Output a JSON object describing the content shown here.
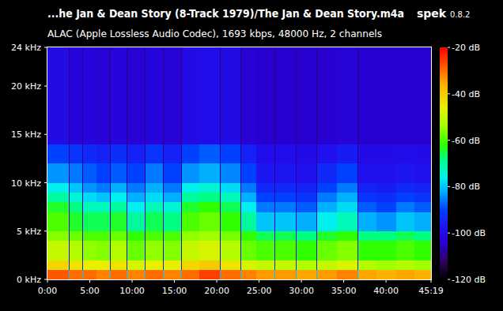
{
  "chart_data": {
    "type": "heatmap",
    "title": "...he Jan & Dean Story (8-Track 1979)/The Jan & Dean Story.m4a",
    "subtitle": "ALAC (Apple Lossless Audio Codec), 1693 kbps, 48000 Hz, 2 channels",
    "annotations": [
      "spek",
      "0.8.2"
    ],
    "x": [
      0,
      152,
      156,
      248,
      252,
      345,
      349,
      445,
      449,
      560,
      564,
      690,
      694,
      818,
      822,
      950,
      954,
      1075,
      1079,
      1224,
      1228,
      1367,
      1371,
      1478,
      1482,
      1610,
      1614,
      1760,
      1764,
      1905,
      1909,
      2050,
      2054,
      2200,
      2204,
      2330,
      2334,
      2470,
      2474,
      2600,
      2604,
      2719
    ],
    "y": [
      0,
      1,
      2,
      4,
      5,
      7,
      8,
      9,
      10,
      12,
      14,
      24
    ],
    "values": [
      [
        -28,
        -42,
        -50,
        -56,
        -60,
        -64,
        -70,
        -76,
        -84,
        -90,
        -100
      ],
      [
        -80,
        -95,
        -100,
        -102,
        -104,
        -105,
        -106,
        -107,
        -108,
        -108,
        -110
      ],
      [
        -30,
        -44,
        -52,
        -58,
        -64,
        -68,
        -74,
        -80,
        -86,
        -92,
        -102
      ],
      [
        -80,
        -95,
        -100,
        -102,
        -104,
        -105,
        -106,
        -107,
        -108,
        -108,
        -110
      ],
      [
        -30,
        -46,
        -55,
        -60,
        -66,
        -72,
        -78,
        -84,
        -88,
        -94,
        -102
      ],
      [
        -80,
        -95,
        -100,
        -102,
        -104,
        -105,
        -106,
        -107,
        -108,
        -108,
        -110
      ],
      [
        -32,
        -46,
        -56,
        -60,
        -66,
        -72,
        -80,
        -86,
        -90,
        -95,
        -103
      ],
      [
        -80,
        -95,
        -100,
        -102,
        -104,
        -105,
        -106,
        -107,
        -108,
        -108,
        -110
      ],
      [
        -30,
        -44,
        -52,
        -58,
        -64,
        -70,
        -76,
        -82,
        -88,
        -93,
        -102
      ],
      [
        -80,
        -95,
        -100,
        -102,
        -104,
        -105,
        -106,
        -107,
        -108,
        -108,
        -110
      ],
      [
        -32,
        -48,
        -58,
        -62,
        -70,
        -76,
        -82,
        -86,
        -90,
        -95,
        -103
      ],
      [
        -80,
        -95,
        -100,
        -102,
        -104,
        -105,
        -106,
        -107,
        -108,
        -108,
        -110
      ],
      [
        -30,
        -46,
        -55,
        -60,
        -66,
        -72,
        -78,
        -82,
        -86,
        -92,
        -102
      ],
      [
        -80,
        -95,
        -100,
        -102,
        -104,
        -105,
        -106,
        -107,
        -108,
        -108,
        -110
      ],
      [
        -32,
        -46,
        -56,
        -60,
        -68,
        -74,
        -82,
        -86,
        -90,
        -95,
        -103
      ],
      [
        -80,
        -95,
        -100,
        -102,
        -104,
        -105,
        -106,
        -107,
        -108,
        -108,
        -110
      ],
      [
        -30,
        -42,
        -50,
        -55,
        -60,
        -64,
        -70,
        -76,
        -84,
        -90,
        -100
      ],
      [
        -80,
        -95,
        -100,
        -102,
        -104,
        -105,
        -106,
        -107,
        -108,
        -108,
        -110
      ],
      [
        -26,
        -40,
        -48,
        -54,
        -58,
        -62,
        -68,
        -74,
        -82,
        -88,
        -99
      ],
      [
        -80,
        -95,
        -100,
        -102,
        -104,
        -105,
        -106,
        -107,
        -108,
        -108,
        -110
      ],
      [
        -30,
        -44,
        -52,
        -57,
        -62,
        -66,
        -72,
        -78,
        -85,
        -90,
        -100
      ],
      [
        -80,
        -95,
        -100,
        -102,
        -104,
        -105,
        -106,
        -107,
        -108,
        -108,
        -110
      ],
      [
        -32,
        -48,
        -58,
        -62,
        -70,
        -76,
        -82,
        -86,
        -90,
        -95,
        -103
      ],
      [
        -80,
        -95,
        -100,
        -102,
        -104,
        -105,
        -106,
        -107,
        -108,
        -108,
        -110
      ],
      [
        -34,
        -50,
        -60,
        -66,
        -80,
        -86,
        -90,
        -94,
        -97,
        -99,
        -104
      ],
      [
        -80,
        -95,
        -100,
        -102,
        -104,
        -105,
        -106,
        -107,
        -108,
        -108,
        -110
      ],
      [
        -34,
        -50,
        -60,
        -66,
        -80,
        -86,
        -90,
        -94,
        -97,
        -99,
        -104
      ],
      [
        -80,
        -95,
        -100,
        -102,
        -104,
        -105,
        -106,
        -107,
        -108,
        -108,
        -110
      ],
      [
        -35,
        -52,
        -62,
        -68,
        -82,
        -88,
        -92,
        -95,
        -98,
        -100,
        -104
      ],
      [
        -80,
        -95,
        -100,
        -102,
        -104,
        -105,
        -106,
        -107,
        -108,
        -108,
        -110
      ],
      [
        -34,
        -50,
        -58,
        -64,
        -76,
        -82,
        -86,
        -90,
        -94,
        -98,
        -104
      ],
      [
        -80,
        -95,
        -100,
        -102,
        -104,
        -105,
        -106,
        -107,
        -108,
        -108,
        -110
      ],
      [
        -32,
        -48,
        -56,
        -62,
        -72,
        -78,
        -82,
        -86,
        -90,
        -96,
        -103
      ],
      [
        -80,
        -95,
        -100,
        -102,
        -104,
        -105,
        -106,
        -107,
        -108,
        -108,
        -110
      ],
      [
        -35,
        -52,
        -62,
        -68,
        -82,
        -88,
        -92,
        -95,
        -98,
        -100,
        -104
      ],
      [
        -80,
        -95,
        -100,
        -102,
        -104,
        -105,
        -106,
        -107,
        -108,
        -108,
        -110
      ],
      [
        -36,
        -54,
        -62,
        -68,
        -84,
        -90,
        -93,
        -96,
        -98,
        -100,
        -104
      ],
      [
        -80,
        -95,
        -100,
        -102,
        -104,
        -105,
        -106,
        -107,
        -108,
        -108,
        -110
      ],
      [
        -35,
        -52,
        -60,
        -66,
        -80,
        -86,
        -90,
        -94,
        -97,
        -99,
        -104
      ],
      [
        -80,
        -95,
        -100,
        -102,
        -104,
        -105,
        -106,
        -107,
        -108,
        -108,
        -110
      ],
      [
        -36,
        -54,
        -62,
        -68,
        -82,
        -88,
        -92,
        -95,
        -98,
        -100,
        -104
      ]
    ],
    "xlim": [
      0,
      2719
    ],
    "xticks": [
      {
        "value": 0,
        "label": "0:00"
      },
      {
        "value": 300,
        "label": "5:00"
      },
      {
        "value": 600,
        "label": "10:00"
      },
      {
        "value": 900,
        "label": "15:00"
      },
      {
        "value": 1200,
        "label": "20:00"
      },
      {
        "value": 1500,
        "label": "25:00"
      },
      {
        "value": 1800,
        "label": "30:00"
      },
      {
        "value": 2100,
        "label": "35:00"
      },
      {
        "value": 2400,
        "label": "40:00"
      },
      {
        "value": 2719,
        "label": "45:19"
      }
    ],
    "ylim": [
      0,
      24
    ],
    "yticks": [
      {
        "value": 0,
        "label": "0 kHz"
      },
      {
        "value": 5,
        "label": "5 kHz"
      },
      {
        "value": 10,
        "label": "10 kHz"
      },
      {
        "value": 15,
        "label": "15 kHz"
      },
      {
        "value": 20,
        "label": "20 kHz"
      },
      {
        "value": 24,
        "label": "24 kHz"
      }
    ],
    "colorbar_lim": [
      -120,
      -20
    ],
    "colorbar_ticks": [
      {
        "value": -20,
        "label": "-20 dB"
      },
      {
        "value": -40,
        "label": "-40 dB"
      },
      {
        "value": -60,
        "label": "-60 dB"
      },
      {
        "value": -80,
        "label": "-80 dB"
      },
      {
        "value": -100,
        "label": "-100 dB"
      },
      {
        "value": -120,
        "label": "-120 dB"
      }
    ],
    "grid": false
  }
}
